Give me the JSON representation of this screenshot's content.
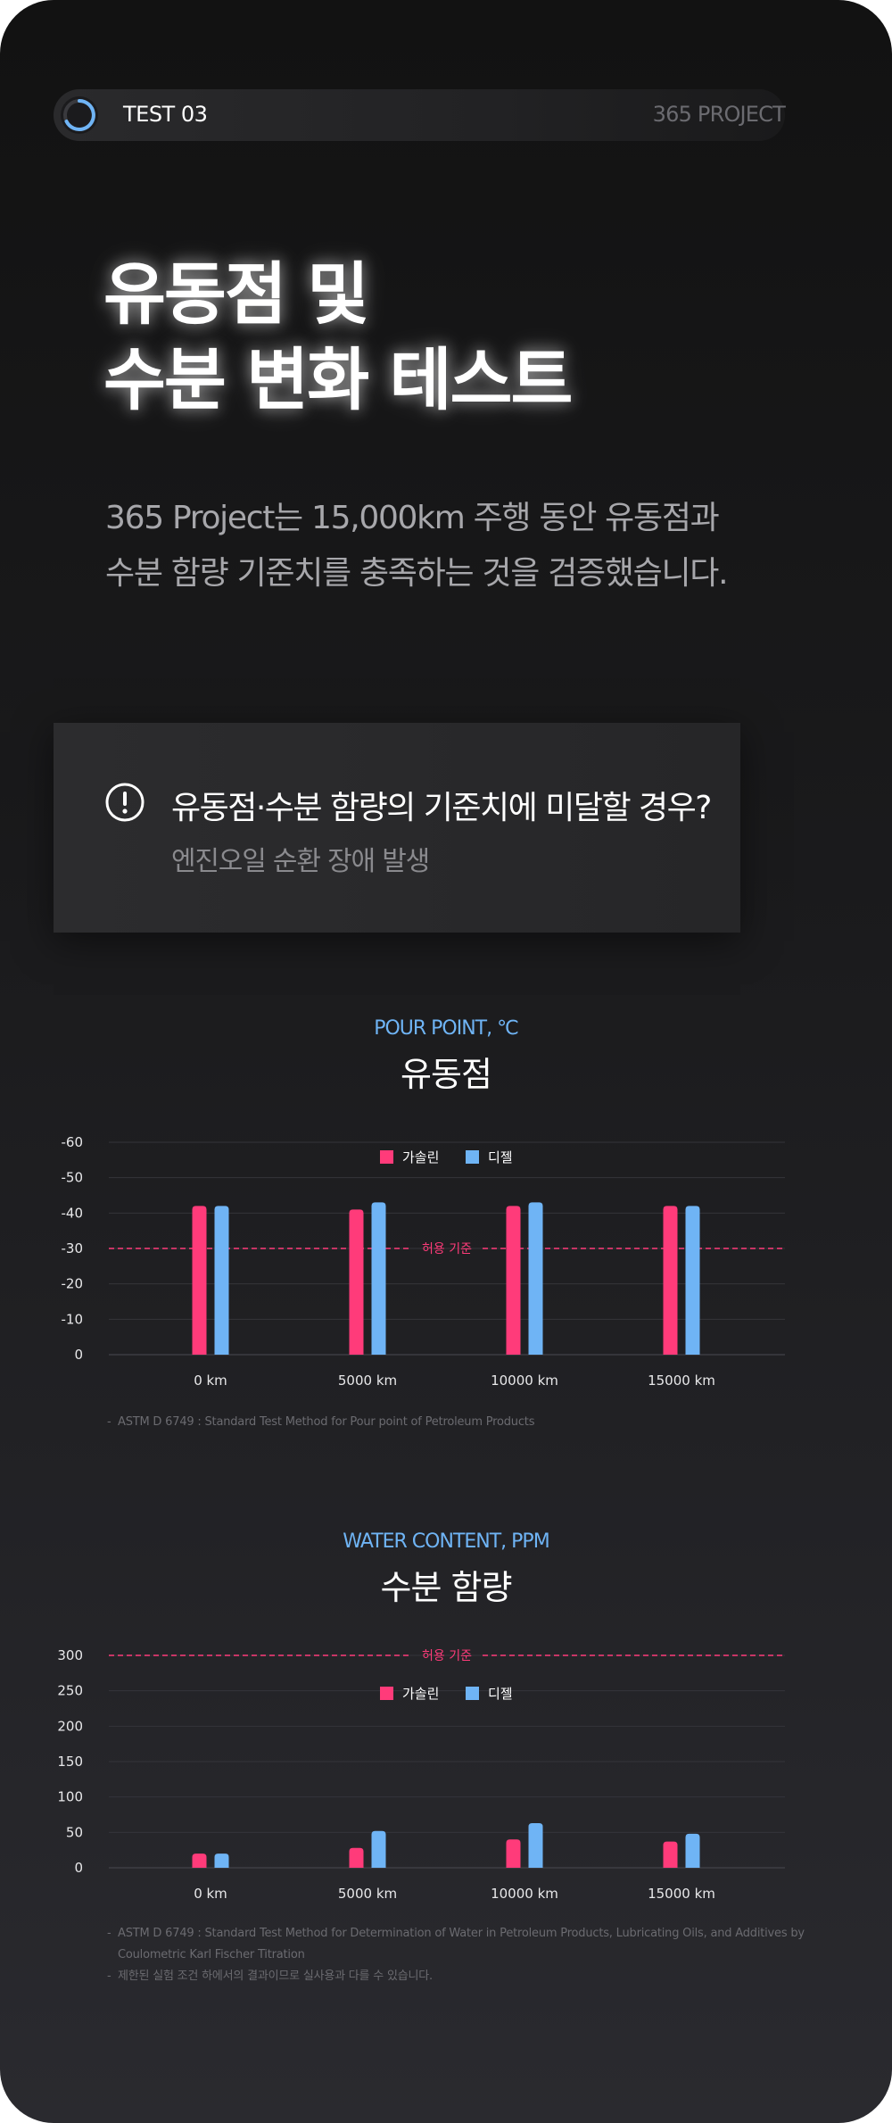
{
  "header": {
    "test_label": "TEST 03",
    "project_label": "365 PROJECT"
  },
  "hero": {
    "title_line1": "유동점 및",
    "title_line2": "수분 변화 테스트"
  },
  "intro": {
    "line1": "365 Project는 15,000km 주행 동안 유동점과",
    "line2": "수분 함량 기준치를 충족하는 것을 검증했습니다."
  },
  "warning": {
    "icon": "exclamation-circle-icon",
    "question": "유동점·수분 함량의 기준치에 미달할 경우?",
    "answer": "엔진오일 순환 장애 발생"
  },
  "colors": {
    "gasoline": "#ff3b7a",
    "diesel": "#6fb4f5",
    "limit": "#ff3b7a",
    "accent": "#6fb4f5"
  },
  "chart_data": [
    {
      "type": "bar",
      "eyebrow": "POUR POINT, ℃",
      "title": "유동점",
      "categories": [
        "0 km",
        "5000 km",
        "10000 km",
        "15000 km"
      ],
      "series": [
        {
          "name": "가솔린",
          "values": [
            -42,
            -41,
            -42,
            -42
          ]
        },
        {
          "name": "디젤",
          "values": [
            -42,
            -43,
            -43,
            -42
          ]
        }
      ],
      "yticks": [
        "-60",
        "-50",
        "-40",
        "-30",
        "-20",
        "-10",
        "0"
      ],
      "ylim": [
        0,
        -60
      ],
      "threshold": {
        "value": -30,
        "label": "허용 기준"
      },
      "legend": "top-center",
      "grid": true,
      "notes": [
        "ASTM D 6749 : Standard Test Method for Pour point of Petroleum Products"
      ]
    },
    {
      "type": "bar",
      "eyebrow": "WATER CONTENT, PPM",
      "title": "수분 함량",
      "categories": [
        "0 km",
        "5000 km",
        "10000 km",
        "15000 km"
      ],
      "series": [
        {
          "name": "가솔린",
          "values": [
            20,
            28,
            40,
            37
          ]
        },
        {
          "name": "디젤",
          "values": [
            20,
            52,
            63,
            48
          ]
        }
      ],
      "yticks": [
        "300",
        "250",
        "200",
        "150",
        "100",
        "50",
        "0"
      ],
      "ylim": [
        0,
        300
      ],
      "threshold": {
        "value": 300,
        "label": "허용 기준"
      },
      "legend": "top-center",
      "grid": true,
      "notes": [
        "ASTM D 6749 : Standard Test Method for Determination of Water in Petroleum Products, Lubricating Oils, and Additives by Coulometric Karl Fischer Titration",
        "제한된 실험 조건 하에서의 결과이므로 실사용과 다를 수 있습니다."
      ]
    }
  ]
}
